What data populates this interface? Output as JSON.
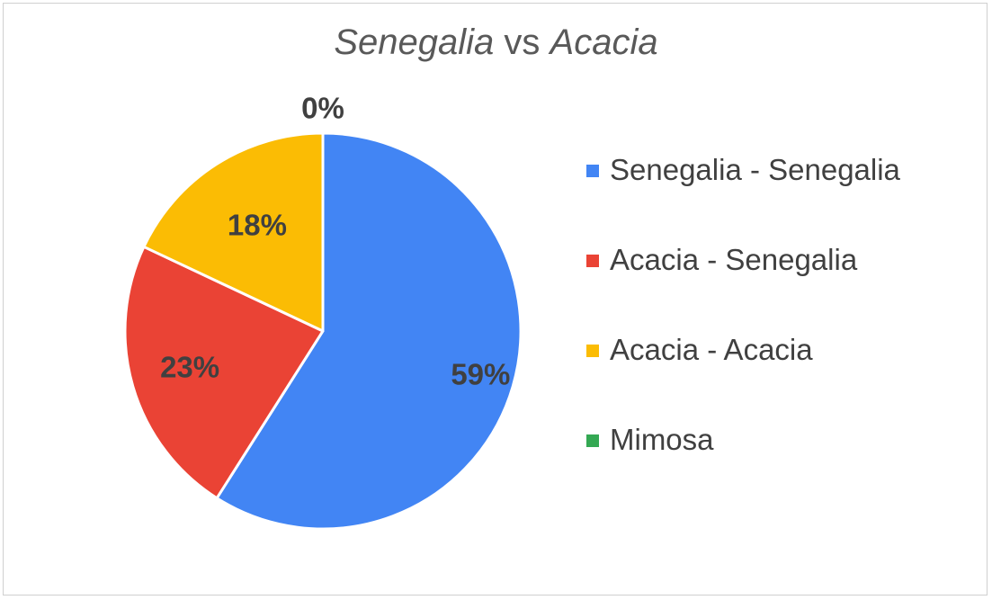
{
  "chart_data": {
    "type": "pie",
    "title_parts": [
      {
        "text": "Senegalia",
        "italic": true
      },
      {
        "text": " vs ",
        "italic": false
      },
      {
        "text": "Acacia",
        "italic": true
      }
    ],
    "categories": [
      "Senegalia - Senegalia",
      "Acacia - Senegalia",
      "Acacia - Acacia",
      "Mimosa"
    ],
    "values": [
      59,
      23,
      18,
      0
    ],
    "labels": [
      "59%",
      "23%",
      "18%",
      "0%"
    ],
    "colors": [
      "#4285F4",
      "#EA4335",
      "#FBBC04",
      "#34A853"
    ],
    "legend_position": "right"
  },
  "legend": {
    "items": [
      {
        "label": "Senegalia - Senegalia",
        "color": "#4285F4"
      },
      {
        "label": "Acacia - Senegalia",
        "color": "#EA4335"
      },
      {
        "label": "Acacia - Acacia",
        "color": "#FBBC04"
      },
      {
        "label": "Mimosa",
        "color": "#34A853"
      }
    ]
  }
}
